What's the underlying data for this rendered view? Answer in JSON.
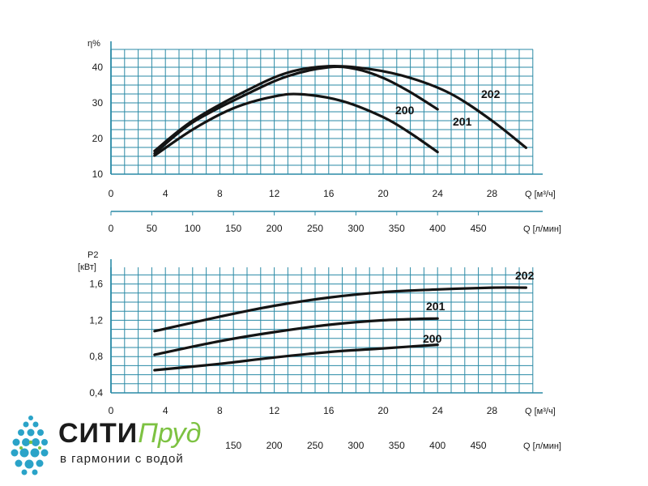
{
  "colors": {
    "grid": "#2a8aa6",
    "curve": "#141414",
    "brand_dark": "#1b1b1b",
    "brand_green": "#7dc242",
    "drops": "#2aa3c8"
  },
  "logo": {
    "icon": "water-drops-icon",
    "brand_main": "СИТИ",
    "brand_accent": "Пруд",
    "slogan": "в гармонии с водой"
  },
  "chart_data": [
    {
      "type": "line",
      "ylabel": "η%",
      "xlabel": "Q [м³/ч]",
      "secondary_xlabel": "Q [л/мин]",
      "ylim": [
        10,
        45
      ],
      "yticks": [
        "10",
        "20",
        "30",
        "40"
      ],
      "xlim": [
        0,
        31
      ],
      "xticks": [
        "0",
        "4",
        "8",
        "12",
        "16",
        "20",
        "24",
        "28"
      ],
      "secondary_xticks": [
        "0",
        "50",
        "100",
        "150",
        "200",
        "250",
        "300",
        "350",
        "400",
        "450"
      ],
      "grid": true,
      "series": [
        {
          "name": "200",
          "x": [
            3.2,
            6,
            9,
            12,
            14,
            17,
            20,
            22,
            24
          ],
          "values": [
            15.2,
            22.5,
            28.5,
            31.8,
            32.4,
            30.5,
            26.0,
            21.5,
            16.2
          ]
        },
        {
          "name": "201",
          "x": [
            3.2,
            6,
            10,
            13,
            16,
            18,
            20,
            22,
            24
          ],
          "values": [
            15.8,
            24.5,
            32.5,
            37.5,
            40.0,
            39.5,
            37.0,
            33.0,
            28.2
          ]
        },
        {
          "name": "202",
          "x": [
            3.2,
            6,
            10,
            13,
            16,
            19,
            22,
            25,
            28,
            30.5
          ],
          "values": [
            16.5,
            25.0,
            33.5,
            38.5,
            40.3,
            39.5,
            37.0,
            32.5,
            25.0,
            17.4
          ]
        }
      ]
    },
    {
      "type": "line",
      "ylabel": "P2",
      "yunit": "[кВт]",
      "xlabel": "Q [м³/ч]",
      "secondary_xlabel": "Q [л/мин]",
      "ylim": [
        0.4,
        1.7
      ],
      "yticks": [
        "0,4",
        "0,8",
        "1,2",
        "1,6"
      ],
      "xlim": [
        0,
        31
      ],
      "xticks": [
        "0",
        "4",
        "8",
        "12",
        "16",
        "20",
        "24",
        "28"
      ],
      "secondary_xticks": [
        "150",
        "200",
        "250",
        "300",
        "350",
        "400",
        "450"
      ],
      "grid": true,
      "series": [
        {
          "name": "200",
          "x": [
            3.2,
            8,
            12,
            16,
            20,
            24
          ],
          "values": [
            0.65,
            0.72,
            0.79,
            0.85,
            0.89,
            0.93
          ]
        },
        {
          "name": "201",
          "x": [
            3.2,
            8,
            12,
            16,
            20,
            24
          ],
          "values": [
            0.82,
            0.97,
            1.07,
            1.15,
            1.2,
            1.22
          ]
        },
        {
          "name": "202",
          "x": [
            3.2,
            8,
            12,
            16,
            20,
            24,
            28,
            30.5
          ],
          "values": [
            1.08,
            1.24,
            1.36,
            1.45,
            1.51,
            1.54,
            1.56,
            1.56
          ]
        }
      ]
    }
  ]
}
